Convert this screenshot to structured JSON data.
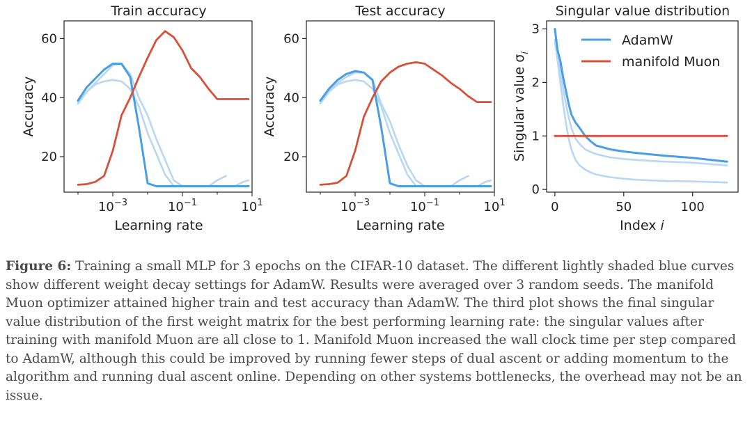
{
  "colors": {
    "adamw": "#4a9ee6",
    "adamw_light": "#b7d7f4",
    "muon": "#d6503a",
    "axis": "#222222"
  },
  "caption": {
    "label": "Figure 6:",
    "text": "Training a small MLP for 3 epochs on the CIFAR-10 dataset. The different lightly shaded blue curves show different weight decay settings for AdamW. Results were averaged over 3 random seeds. The manifold Muon optimizer attained higher train and test accuracy than AdamW. The third plot shows the final singular value distribution of the first weight matrix for the best performing learning rate: the singular values after training with manifold Muon are all close to 1. Manifold Muon increased the wall clock time per step compared to AdamW, although this could be improved by running fewer steps of dual ascent or adding momentum to the algorithm and running dual ascent online. Depending on other systems bottlenecks, the overhead may not be an issue."
  },
  "chart_data": [
    {
      "type": "line",
      "title": "Train accuracy",
      "xlabel": "Learning rate",
      "ylabel": "Accuracy",
      "xscale": "log",
      "xlim_exp": [
        -4.4,
        1.0
      ],
      "ylim": [
        8,
        66
      ],
      "xticks": [
        {
          "exp": -3,
          "label_base": "10",
          "label_exp": "−3"
        },
        {
          "exp": -1,
          "label_base": "10",
          "label_exp": "−1"
        },
        {
          "exp": 1,
          "label_base": "10",
          "label_exp": "1"
        }
      ],
      "yticks": [
        {
          "v": 20,
          "label": "20"
        },
        {
          "v": 40,
          "label": "40"
        },
        {
          "v": 60,
          "label": "60"
        }
      ],
      "grid": false,
      "series": [
        {
          "name": "AdamW",
          "style": "light",
          "x_exp": [
            -4.0,
            -3.75,
            -3.5,
            -3.25,
            -3.0,
            -2.75,
            -2.5,
            -2.25,
            -2.0,
            -1.75,
            -1.5,
            -1.25,
            -1.0,
            -0.75
          ],
          "values": [
            38.5,
            42,
            44.5,
            45.5,
            46,
            45.5,
            43,
            37,
            28,
            21,
            14,
            10,
            10,
            10
          ]
        },
        {
          "name": "AdamW",
          "style": "light",
          "x_exp": [
            -4.0,
            -3.75,
            -3.5,
            -3.25,
            -3.0,
            -2.75,
            -2.5,
            -2.25,
            -2.0,
            -1.75,
            -1.5,
            -1.25,
            -1.0,
            -0.75,
            -0.5,
            -0.25,
            0.0,
            0.25
          ],
          "values": [
            38,
            42,
            45,
            48,
            51,
            51.5,
            48,
            40,
            34,
            26,
            19,
            12,
            10,
            10,
            10,
            10,
            12,
            13.5
          ]
        },
        {
          "name": "AdamW",
          "style": "light",
          "x_exp": [
            -1.0,
            -0.5,
            0.0,
            0.5,
            0.75,
            0.9
          ],
          "values": [
            10,
            10,
            10,
            10,
            11.5,
            12
          ]
        },
        {
          "name": "AdamW",
          "style": "main",
          "x_exp": [
            -4.0,
            -3.75,
            -3.5,
            -3.25,
            -3.0,
            -2.75,
            -2.5,
            -2.25,
            -2.0,
            -1.75,
            -1.5,
            -1.25,
            -1.0,
            -0.75,
            -0.5,
            -0.25,
            0.0,
            0.25,
            0.5,
            0.75,
            0.9
          ],
          "values": [
            39,
            43.5,
            46.5,
            49.5,
            51.5,
            51.5,
            47,
            30,
            11,
            10,
            10,
            10,
            10,
            10,
            10,
            10,
            10,
            10,
            10,
            10,
            10
          ]
        },
        {
          "name": "manifold Muon",
          "style": "muon",
          "x_exp": [
            -4.0,
            -3.75,
            -3.5,
            -3.25,
            -3.0,
            -2.75,
            -2.5,
            -2.25,
            -2.0,
            -1.75,
            -1.5,
            -1.25,
            -1.0,
            -0.75,
            -0.5,
            -0.25,
            0.0,
            0.25,
            0.5,
            0.75,
            0.9
          ],
          "values": [
            10.5,
            10.7,
            11.5,
            13.5,
            22,
            34,
            40,
            47,
            53.5,
            59.5,
            62.5,
            60.5,
            56,
            50,
            47,
            43,
            39.5,
            39.5,
            39.5,
            39.5,
            39.5
          ]
        }
      ]
    },
    {
      "type": "line",
      "title": "Test accuracy",
      "xlabel": "Learning rate",
      "ylabel": "Accuracy",
      "xscale": "log",
      "xlim_exp": [
        -4.4,
        1.0
      ],
      "ylim": [
        8,
        66
      ],
      "xticks": [
        {
          "exp": -3,
          "label_base": "10",
          "label_exp": "−3"
        },
        {
          "exp": -1,
          "label_base": "10",
          "label_exp": "−1"
        },
        {
          "exp": 1,
          "label_base": "10",
          "label_exp": "1"
        }
      ],
      "yticks": [
        {
          "v": 20,
          "label": "20"
        },
        {
          "v": 40,
          "label": "40"
        },
        {
          "v": 60,
          "label": "60"
        }
      ],
      "grid": false,
      "series": [
        {
          "name": "AdamW",
          "style": "light",
          "x_exp": [
            -4.0,
            -3.75,
            -3.5,
            -3.25,
            -3.0,
            -2.75,
            -2.5,
            -2.25,
            -2.0,
            -1.75,
            -1.5,
            -1.25,
            -1.0,
            -0.75
          ],
          "values": [
            38.5,
            42,
            44.5,
            45.5,
            46,
            45.5,
            43,
            37,
            28,
            21,
            14,
            10,
            10,
            10
          ]
        },
        {
          "name": "AdamW",
          "style": "light",
          "x_exp": [
            -4.0,
            -3.75,
            -3.5,
            -3.25,
            -3.0,
            -2.75,
            -2.5,
            -2.25,
            -2.0,
            -1.75,
            -1.5,
            -1.25,
            -1.0,
            -0.75,
            -0.5,
            -0.25,
            0.0,
            0.25
          ],
          "values": [
            38,
            42,
            45,
            47,
            48.5,
            48.5,
            46,
            38,
            32,
            24,
            17,
            12,
            10,
            10,
            10,
            10,
            12,
            13.5
          ]
        },
        {
          "name": "AdamW",
          "style": "light",
          "x_exp": [
            -1.0,
            -0.5,
            0.0,
            0.5,
            0.75,
            0.9
          ],
          "values": [
            10,
            10,
            10,
            10,
            11.5,
            12
          ]
        },
        {
          "name": "AdamW",
          "style": "main",
          "x_exp": [
            -4.0,
            -3.75,
            -3.5,
            -3.25,
            -3.0,
            -2.75,
            -2.5,
            -2.25,
            -2.0,
            -1.75,
            -1.5,
            -1.25,
            -1.0,
            -0.75,
            -0.5,
            -0.25,
            0.0,
            0.25,
            0.5,
            0.75,
            0.9
          ],
          "values": [
            39,
            43,
            46,
            48,
            49,
            48.5,
            46,
            30,
            11,
            10,
            10,
            10,
            10,
            10,
            10,
            10,
            10,
            10,
            10,
            10,
            10
          ]
        },
        {
          "name": "manifold Muon",
          "style": "muon",
          "x_exp": [
            -4.0,
            -3.75,
            -3.5,
            -3.25,
            -3.0,
            -2.75,
            -2.5,
            -2.25,
            -2.0,
            -1.75,
            -1.5,
            -1.25,
            -1.0,
            -0.75,
            -0.5,
            -0.25,
            0.0,
            0.25,
            0.5,
            0.75,
            0.9
          ],
          "values": [
            10.5,
            10.7,
            11.2,
            13.5,
            22,
            33.5,
            40,
            45.5,
            48.5,
            50.5,
            51.5,
            52,
            51.5,
            49.5,
            47.5,
            45,
            43,
            40.5,
            38.5,
            38.5,
            38.5
          ]
        }
      ]
    },
    {
      "type": "line",
      "title": "Singular value distribution",
      "xlabel": "Index",
      "xlabel_var": "i",
      "ylabel": "Singular value σ",
      "ylabel_sub": "i",
      "xlim": [
        -6,
        133
      ],
      "ylim": [
        -0.05,
        3.15
      ],
      "xticks": [
        {
          "v": 0,
          "label": "0"
        },
        {
          "v": 50,
          "label": "50"
        },
        {
          "v": 100,
          "label": "100"
        }
      ],
      "yticks": [
        {
          "v": 0,
          "label": "0"
        },
        {
          "v": 1,
          "label": "1"
        },
        {
          "v": 2,
          "label": "2"
        },
        {
          "v": 3,
          "label": "3"
        }
      ],
      "grid": false,
      "legend": {
        "placement": "top-right",
        "entries": [
          "AdamW",
          "manifold Muon"
        ]
      },
      "series": [
        {
          "name": "AdamW",
          "style": "light",
          "x": [
            0,
            2,
            4,
            6,
            8,
            10,
            12,
            15,
            18,
            22,
            26,
            30,
            40,
            50,
            60,
            80,
            100,
            125
          ],
          "values": [
            2.8,
            2.4,
            2.0,
            1.6,
            1.25,
            0.95,
            0.75,
            0.55,
            0.45,
            0.37,
            0.32,
            0.28,
            0.23,
            0.2,
            0.18,
            0.16,
            0.15,
            0.13
          ]
        },
        {
          "name": "AdamW",
          "style": "light",
          "x": [
            0,
            2,
            4,
            6,
            8,
            10,
            12,
            15,
            18,
            22,
            26,
            30,
            40,
            50,
            60,
            80,
            100,
            125
          ],
          "values": [
            2.75,
            2.5,
            2.2,
            1.9,
            1.6,
            1.35,
            1.15,
            0.95,
            0.85,
            0.75,
            0.7,
            0.66,
            0.6,
            0.57,
            0.55,
            0.52,
            0.5,
            0.45
          ]
        },
        {
          "name": "AdamW",
          "style": "main",
          "x": [
            0,
            2,
            4,
            6,
            8,
            10,
            12,
            15,
            18,
            22,
            26,
            30,
            40,
            50,
            60,
            80,
            100,
            125
          ],
          "values": [
            3.0,
            2.6,
            2.4,
            2.1,
            1.85,
            1.6,
            1.4,
            1.25,
            1.15,
            1.0,
            0.9,
            0.82,
            0.75,
            0.71,
            0.68,
            0.63,
            0.59,
            0.52
          ]
        },
        {
          "name": "manifold Muon",
          "style": "muon",
          "x": [
            0,
            125
          ],
          "values": [
            1.0,
            1.0
          ]
        }
      ]
    }
  ]
}
